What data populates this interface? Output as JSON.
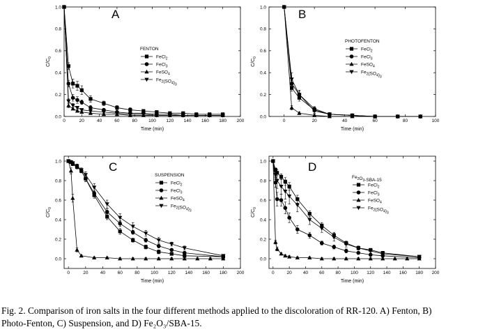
{
  "figure": {
    "caption_line1": "Fig. 2. Comparison of iron salts in the four different methods applied to the discoloration of RR-120. A) Fenton, B)",
    "caption_line2": "Photo-Fenton, C) Suspension, and D) Fe₂O₃/SBA-15."
  },
  "chart_data": [
    {
      "panel": "A",
      "title": "FENTON",
      "type": "line",
      "xlabel": "Time (min)",
      "ylabel": "C/C₀",
      "xlim": [
        0,
        200
      ],
      "ylim": [
        0.0,
        1.0
      ],
      "xticks": [
        0,
        20,
        40,
        60,
        80,
        100,
        120,
        140,
        160,
        180,
        200
      ],
      "yticks": [
        0.0,
        0.2,
        0.4,
        0.6,
        0.8,
        1.0
      ],
      "series": [
        {
          "name": "FeCl₂",
          "marker": "square",
          "x": [
            0,
            5,
            10,
            15,
            20,
            30,
            45,
            60,
            75,
            90,
            105,
            120,
            135,
            150,
            165,
            180
          ],
          "y": [
            1.0,
            0.46,
            0.3,
            0.28,
            0.24,
            0.16,
            0.12,
            0.08,
            0.06,
            0.05,
            0.04,
            0.03,
            0.03,
            0.02,
            0.02,
            0.02
          ],
          "err": [
            0,
            0.03,
            0.04,
            0.04,
            0.04,
            0.03,
            0.02,
            0.02,
            0.02,
            0.01,
            0.01,
            0.01,
            0.01,
            0.01,
            0.01,
            0.01
          ]
        },
        {
          "name": "FeCl₃",
          "marker": "circle",
          "x": [
            0,
            5,
            10,
            15,
            20,
            30,
            45,
            60,
            75,
            90,
            105,
            120,
            135,
            150,
            165,
            180
          ],
          "y": [
            1.0,
            0.3,
            0.17,
            0.15,
            0.13,
            0.08,
            0.06,
            0.04,
            0.03,
            0.03,
            0.02,
            0.02,
            0.01,
            0.01,
            0.01,
            0.01
          ],
          "err": [
            0,
            0.03,
            0.03,
            0.03,
            0.02,
            0.02,
            0.01,
            0.01,
            0.01,
            0.01,
            0.01,
            0.01,
            0.01,
            0.01,
            0.01,
            0.01
          ]
        },
        {
          "name": "FeSO₄",
          "marker": "triangle",
          "x": [
            0,
            5,
            10,
            15,
            20,
            30,
            45,
            60,
            75,
            90,
            105,
            120,
            135,
            150,
            165,
            180
          ],
          "y": [
            1.0,
            0.1,
            0.07,
            0.05,
            0.04,
            0.03,
            0.02,
            0.02,
            0.01,
            0.01,
            0.01,
            0.01,
            0.01,
            0.01,
            0.01,
            0.01
          ],
          "err": [
            0,
            0.02,
            0.01,
            0.01,
            0.01,
            0.01,
            0.01,
            0.01,
            0.01,
            0.01,
            0.01,
            0.01,
            0.01,
            0.01,
            0.01,
            0.01
          ]
        },
        {
          "name": "Fe₂(SO₄)₃",
          "marker": "triangle-down",
          "x": [
            0,
            5,
            10,
            15,
            20,
            30,
            45,
            60,
            75,
            90,
            105,
            120,
            135,
            150,
            165,
            180
          ],
          "y": [
            1.0,
            0.14,
            0.1,
            0.08,
            0.06,
            0.05,
            0.04,
            0.03,
            0.02,
            0.02,
            0.01,
            0.01,
            0.01,
            0.01,
            0.01,
            0.01
          ],
          "err": [
            0,
            0.02,
            0.02,
            0.01,
            0.01,
            0.01,
            0.01,
            0.01,
            0.01,
            0.01,
            0.01,
            0.01,
            0.01,
            0.01,
            0.01,
            0.01
          ]
        }
      ]
    },
    {
      "panel": "B",
      "title": "PHOTOFENTON",
      "type": "line",
      "xlabel": "Time (min)",
      "ylabel": "C/C₀",
      "xlim": [
        -10,
        100
      ],
      "ylim": [
        0.0,
        1.0
      ],
      "xticks": [
        0,
        20,
        40,
        60,
        80,
        100
      ],
      "yticks": [
        0.0,
        0.2,
        0.4,
        0.6,
        0.8,
        1.0
      ],
      "series": [
        {
          "name": "FeCl₂",
          "marker": "square",
          "x": [
            0,
            5,
            10,
            20,
            30,
            45,
            60,
            75,
            90
          ],
          "y": [
            1.0,
            0.26,
            0.17,
            0.06,
            0.02,
            0.01,
            0.0,
            0.0,
            0.0
          ],
          "err": [
            0,
            0.03,
            0.03,
            0.02,
            0.01,
            0.01,
            0.01,
            0.01,
            0.01
          ]
        },
        {
          "name": "FeCl₃",
          "marker": "circle",
          "x": [
            0,
            5,
            10,
            20,
            30,
            45,
            60,
            75,
            90
          ],
          "y": [
            1.0,
            0.3,
            0.2,
            0.07,
            0.02,
            0.01,
            0.0,
            0.0,
            0.0
          ],
          "err": [
            0,
            0.03,
            0.03,
            0.02,
            0.01,
            0.01,
            0.01,
            0.01,
            0.01
          ]
        },
        {
          "name": "FeSO₄",
          "marker": "triangle",
          "x": [
            0,
            5,
            10,
            20,
            30,
            45,
            60,
            75,
            90
          ],
          "y": [
            1.0,
            0.08,
            0.03,
            0.01,
            0.0,
            0.0,
            0.0,
            0.0,
            0.0
          ],
          "err": [
            0,
            0.02,
            0.01,
            0.01,
            0.01,
            0.01,
            0.01,
            0.01,
            0.01
          ]
        },
        {
          "name": "Fe₂(SO₄)₃",
          "marker": "triangle-down",
          "x": [
            0,
            5,
            10,
            20,
            30,
            45,
            60,
            75,
            90
          ],
          "y": [
            1.0,
            0.34,
            0.2,
            0.05,
            0.02,
            0.01,
            0.0,
            0.0,
            0.0
          ],
          "err": [
            0,
            0.06,
            0.04,
            0.02,
            0.01,
            0.01,
            0.01,
            0.01,
            0.01
          ]
        }
      ]
    },
    {
      "panel": "C",
      "title": "SUSPENSION",
      "type": "line",
      "xlabel": "Time (min)",
      "ylabel": "C/C₀",
      "xlim": [
        -5,
        200
      ],
      "ylim": [
        -0.1,
        1.05
      ],
      "xticks": [
        0,
        20,
        40,
        60,
        80,
        100,
        120,
        140,
        160,
        180,
        200
      ],
      "yticks": [
        0.0,
        0.2,
        0.4,
        0.6,
        0.8,
        1.0
      ],
      "series": [
        {
          "name": "FeCl₂",
          "marker": "square",
          "x": [
            0,
            3,
            5,
            10,
            15,
            20,
            30,
            45,
            60,
            75,
            90,
            105,
            120,
            135,
            180
          ],
          "y": [
            1.0,
            0.99,
            0.97,
            0.94,
            0.9,
            0.82,
            0.65,
            0.43,
            0.28,
            0.19,
            0.12,
            0.07,
            0.05,
            0.03,
            0.02
          ],
          "err": [
            0,
            0.01,
            0.01,
            0.02,
            0.02,
            0.03,
            0.03,
            0.03,
            0.03,
            0.02,
            0.02,
            0.02,
            0.01,
            0.01,
            0.01
          ]
        },
        {
          "name": "FeCl₃",
          "marker": "circle",
          "x": [
            0,
            3,
            5,
            10,
            15,
            20,
            30,
            45,
            60,
            75,
            90,
            105,
            120,
            135,
            180
          ],
          "y": [
            1.0,
            0.99,
            0.97,
            0.94,
            0.9,
            0.82,
            0.67,
            0.48,
            0.36,
            0.27,
            0.19,
            0.13,
            0.09,
            0.06,
            0.02
          ],
          "err": [
            0,
            0.01,
            0.01,
            0.02,
            0.02,
            0.03,
            0.03,
            0.03,
            0.03,
            0.02,
            0.02,
            0.02,
            0.01,
            0.01,
            0.01
          ]
        },
        {
          "name": "FeSO₄",
          "marker": "triangle",
          "x": [
            0,
            3,
            5,
            10,
            15,
            30,
            45,
            60,
            75,
            90,
            105,
            120,
            135,
            150,
            165,
            180
          ],
          "y": [
            1.0,
            0.9,
            0.62,
            0.09,
            0.03,
            0.01,
            0.01,
            0.0,
            0.0,
            0.0,
            0.0,
            0.0,
            0.0,
            0.0,
            0.0,
            0.0
          ],
          "err": [
            0,
            0.03,
            0.04,
            0.02,
            0.01,
            0.01,
            0.01,
            0.01,
            0.01,
            0.01,
            0.01,
            0.01,
            0.01,
            0.01,
            0.01,
            0.01
          ]
        },
        {
          "name": "Fe₂(SO₄)₃",
          "marker": "triangle-down",
          "x": [
            0,
            3,
            5,
            10,
            15,
            20,
            30,
            45,
            60,
            75,
            90,
            105,
            120,
            135,
            180
          ],
          "y": [
            1.0,
            0.99,
            0.98,
            0.95,
            0.91,
            0.86,
            0.73,
            0.56,
            0.42,
            0.33,
            0.26,
            0.19,
            0.15,
            0.11,
            0.03
          ],
          "err": [
            0,
            0.01,
            0.01,
            0.02,
            0.02,
            0.03,
            0.04,
            0.04,
            0.04,
            0.04,
            0.03,
            0.03,
            0.02,
            0.02,
            0.01
          ]
        }
      ]
    },
    {
      "panel": "D",
      "title": "Fe₂O₃-SBA-15",
      "type": "line",
      "xlabel": "Time (min)",
      "ylabel": "C/C₀",
      "xlim": [
        -5,
        200
      ],
      "ylim": [
        -0.1,
        1.05
      ],
      "xticks": [
        0,
        20,
        40,
        60,
        80,
        100,
        120,
        140,
        160,
        180,
        200
      ],
      "yticks": [
        0.0,
        0.2,
        0.4,
        0.6,
        0.8,
        1.0
      ],
      "series": [
        {
          "name": "FeCl₂",
          "marker": "square",
          "x": [
            0,
            3,
            5,
            10,
            15,
            20,
            30,
            45,
            60,
            75,
            90,
            105,
            120,
            135,
            180
          ],
          "y": [
            1.0,
            0.91,
            0.88,
            0.84,
            0.79,
            0.74,
            0.61,
            0.46,
            0.34,
            0.24,
            0.16,
            0.11,
            0.09,
            0.06,
            0.02
          ],
          "err": [
            0,
            0.02,
            0.03,
            0.03,
            0.04,
            0.04,
            0.04,
            0.03,
            0.03,
            0.03,
            0.02,
            0.02,
            0.01,
            0.01,
            0.01
          ]
        },
        {
          "name": "FeCl₃",
          "marker": "circle",
          "x": [
            0,
            3,
            5,
            10,
            15,
            20,
            30,
            45,
            60,
            75,
            90,
            105,
            120,
            135,
            180
          ],
          "y": [
            1.0,
            0.78,
            0.61,
            0.6,
            0.52,
            0.42,
            0.3,
            0.24,
            0.16,
            0.12,
            0.08,
            0.06,
            0.04,
            0.03,
            0.01
          ],
          "err": [
            0,
            0.05,
            0.07,
            0.06,
            0.06,
            0.05,
            0.04,
            0.03,
            0.02,
            0.02,
            0.02,
            0.01,
            0.01,
            0.01,
            0.01
          ]
        },
        {
          "name": "FeSO₄",
          "marker": "triangle",
          "x": [
            0,
            3,
            5,
            10,
            15,
            20,
            30,
            45,
            60,
            75,
            90,
            105,
            120,
            135,
            150,
            165,
            180
          ],
          "y": [
            1.0,
            0.17,
            0.1,
            0.05,
            0.03,
            0.02,
            0.01,
            0.01,
            0.0,
            0.0,
            0.0,
            0.0,
            0.0,
            0.0,
            0.0,
            0.0,
            0.0
          ],
          "err": [
            0,
            0.02,
            0.02,
            0.01,
            0.01,
            0.01,
            0.01,
            0.01,
            0.01,
            0.01,
            0.01,
            0.01,
            0.01,
            0.01,
            0.01,
            0.01,
            0.01
          ]
        },
        {
          "name": "Fe₂(SO₄)₃",
          "marker": "triangle-down",
          "x": [
            0,
            3,
            5,
            10,
            15,
            20,
            30,
            45,
            60,
            75,
            90,
            105,
            120,
            135,
            180
          ],
          "y": [
            1.0,
            0.86,
            0.8,
            0.74,
            0.69,
            0.64,
            0.55,
            0.4,
            0.31,
            0.22,
            0.15,
            0.11,
            0.08,
            0.05,
            0.02
          ],
          "err": [
            0,
            0.05,
            0.08,
            0.08,
            0.08,
            0.08,
            0.07,
            0.05,
            0.04,
            0.04,
            0.03,
            0.02,
            0.02,
            0.01,
            0.01
          ]
        }
      ]
    }
  ]
}
